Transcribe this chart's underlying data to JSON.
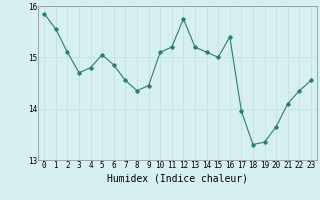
{
  "title": "",
  "xlabel": "Humidex (Indice chaleur)",
  "x": [
    0,
    1,
    2,
    3,
    4,
    5,
    6,
    7,
    8,
    9,
    10,
    11,
    12,
    13,
    14,
    15,
    16,
    17,
    18,
    19,
    20,
    21,
    22,
    23
  ],
  "y": [
    15.85,
    15.55,
    15.1,
    14.7,
    14.8,
    15.05,
    14.85,
    14.55,
    14.35,
    14.45,
    15.1,
    15.2,
    15.75,
    15.2,
    15.1,
    15.0,
    15.4,
    13.95,
    13.3,
    13.35,
    13.65,
    14.1,
    14.35,
    14.55
  ],
  "line_color": "#2e7d6e",
  "marker": "D",
  "marker_size": 1.8,
  "line_width": 0.8,
  "ylim": [
    13.0,
    16.0
  ],
  "yticks": [
    13,
    14,
    15,
    16
  ],
  "xticks": [
    0,
    1,
    2,
    3,
    4,
    5,
    6,
    7,
    8,
    9,
    10,
    11,
    12,
    13,
    14,
    15,
    16,
    17,
    18,
    19,
    20,
    21,
    22,
    23
  ],
  "bg_color": "#d6eff0",
  "grid_color": "#c8dfe0",
  "tick_label_fontsize": 5.5,
  "xlabel_fontsize": 7
}
